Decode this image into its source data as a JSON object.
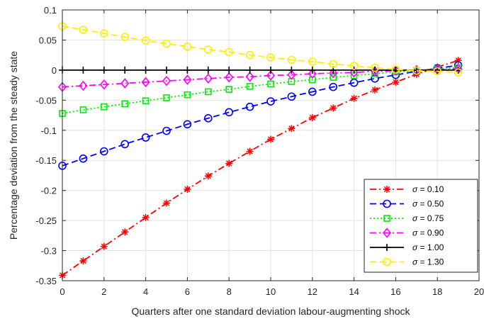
{
  "chart_data": {
    "type": "line",
    "xlabel": "Quarters after one standard deviation labour-augmenting shock",
    "ylabel": "Percentage deviation from the steady state",
    "xlim": [
      0,
      20
    ],
    "ylim": [
      -0.35,
      0.1
    ],
    "xticks": [
      0,
      2,
      4,
      6,
      8,
      10,
      12,
      14,
      16,
      18,
      20
    ],
    "yticks": [
      0.1,
      0.05,
      0,
      -0.05,
      -0.1,
      -0.15,
      -0.2,
      -0.25,
      -0.3,
      -0.35
    ],
    "xtick_labels": [
      "0",
      "2",
      "4",
      "6",
      "8",
      "10",
      "12",
      "14",
      "16",
      "18",
      "20"
    ],
    "ytick_labels": [
      "0.1",
      "0.05",
      "0",
      "-0.05",
      "-0.1",
      "-0.15",
      "-0.2",
      "-0.25",
      "-0.3",
      "-0.35"
    ],
    "grid": true,
    "legend_position": "bottom-right",
    "x": [
      0,
      1,
      2,
      3,
      4,
      5,
      6,
      7,
      8,
      9,
      10,
      11,
      12,
      13,
      14,
      15,
      16,
      17,
      18,
      19
    ],
    "series": [
      {
        "name": "σ = 0.10",
        "greek": "σ",
        "value_label": " = 0.10",
        "color": "#ff0000",
        "line_style": "dash-dot",
        "marker": "asterisk",
        "values": [
          -0.341,
          -0.317,
          -0.293,
          -0.269,
          -0.245,
          -0.221,
          -0.198,
          -0.176,
          -0.155,
          -0.135,
          -0.115,
          -0.097,
          -0.079,
          -0.063,
          -0.047,
          -0.033,
          -0.02,
          -0.007,
          0.005,
          0.016
        ]
      },
      {
        "name": "σ = 0.50",
        "greek": "σ",
        "value_label": " = 0.50",
        "color": "#0000ff",
        "line_style": "dashed",
        "marker": "circle",
        "values": [
          -0.159,
          -0.147,
          -0.135,
          -0.123,
          -0.112,
          -0.101,
          -0.09,
          -0.08,
          -0.07,
          -0.061,
          -0.052,
          -0.044,
          -0.036,
          -0.028,
          -0.021,
          -0.014,
          -0.008,
          -0.002,
          0.003,
          0.008
        ]
      },
      {
        "name": "σ = 0.75",
        "greek": "σ",
        "value_label": " = 0.75",
        "color": "#00ee00",
        "line_style": "dotted",
        "marker": "square",
        "values": [
          -0.072,
          -0.066,
          -0.061,
          -0.056,
          -0.051,
          -0.046,
          -0.041,
          -0.036,
          -0.032,
          -0.027,
          -0.023,
          -0.019,
          -0.016,
          -0.012,
          -0.009,
          -0.006,
          -0.003,
          -0.001,
          0.002,
          0.004
        ]
      },
      {
        "name": "σ = 0.90",
        "greek": "σ",
        "value_label": " = 0.90",
        "color": "#ff00ff",
        "line_style": "dash-dot",
        "marker": "diamond",
        "values": [
          -0.028,
          -0.026,
          -0.024,
          -0.022,
          -0.02,
          -0.018,
          -0.016,
          -0.014,
          -0.012,
          -0.011,
          -0.009,
          -0.008,
          -0.006,
          -0.005,
          -0.004,
          -0.002,
          -0.001,
          0,
          0.001,
          0.002
        ]
      },
      {
        "name": "σ = 1.00",
        "greek": "σ",
        "value_label": " = 1.00",
        "color": "#000000",
        "line_style": "solid",
        "marker": "plus",
        "values": [
          0,
          0,
          0,
          0,
          0,
          0,
          0,
          0,
          0,
          0,
          0,
          0,
          0,
          0,
          0,
          0,
          0,
          0,
          0,
          0
        ]
      },
      {
        "name": "σ = 1.30",
        "greek": "σ",
        "value_label": " = 1.30",
        "color": "#ffee00",
        "line_style": "dashed",
        "marker": "circle",
        "values": [
          0.073,
          0.067,
          0.061,
          0.055,
          0.049,
          0.044,
          0.039,
          0.034,
          0.03,
          0.025,
          0.021,
          0.017,
          0.014,
          0.01,
          0.007,
          0.004,
          0.001,
          -0.001,
          -0.002,
          -0.004
        ]
      }
    ]
  }
}
